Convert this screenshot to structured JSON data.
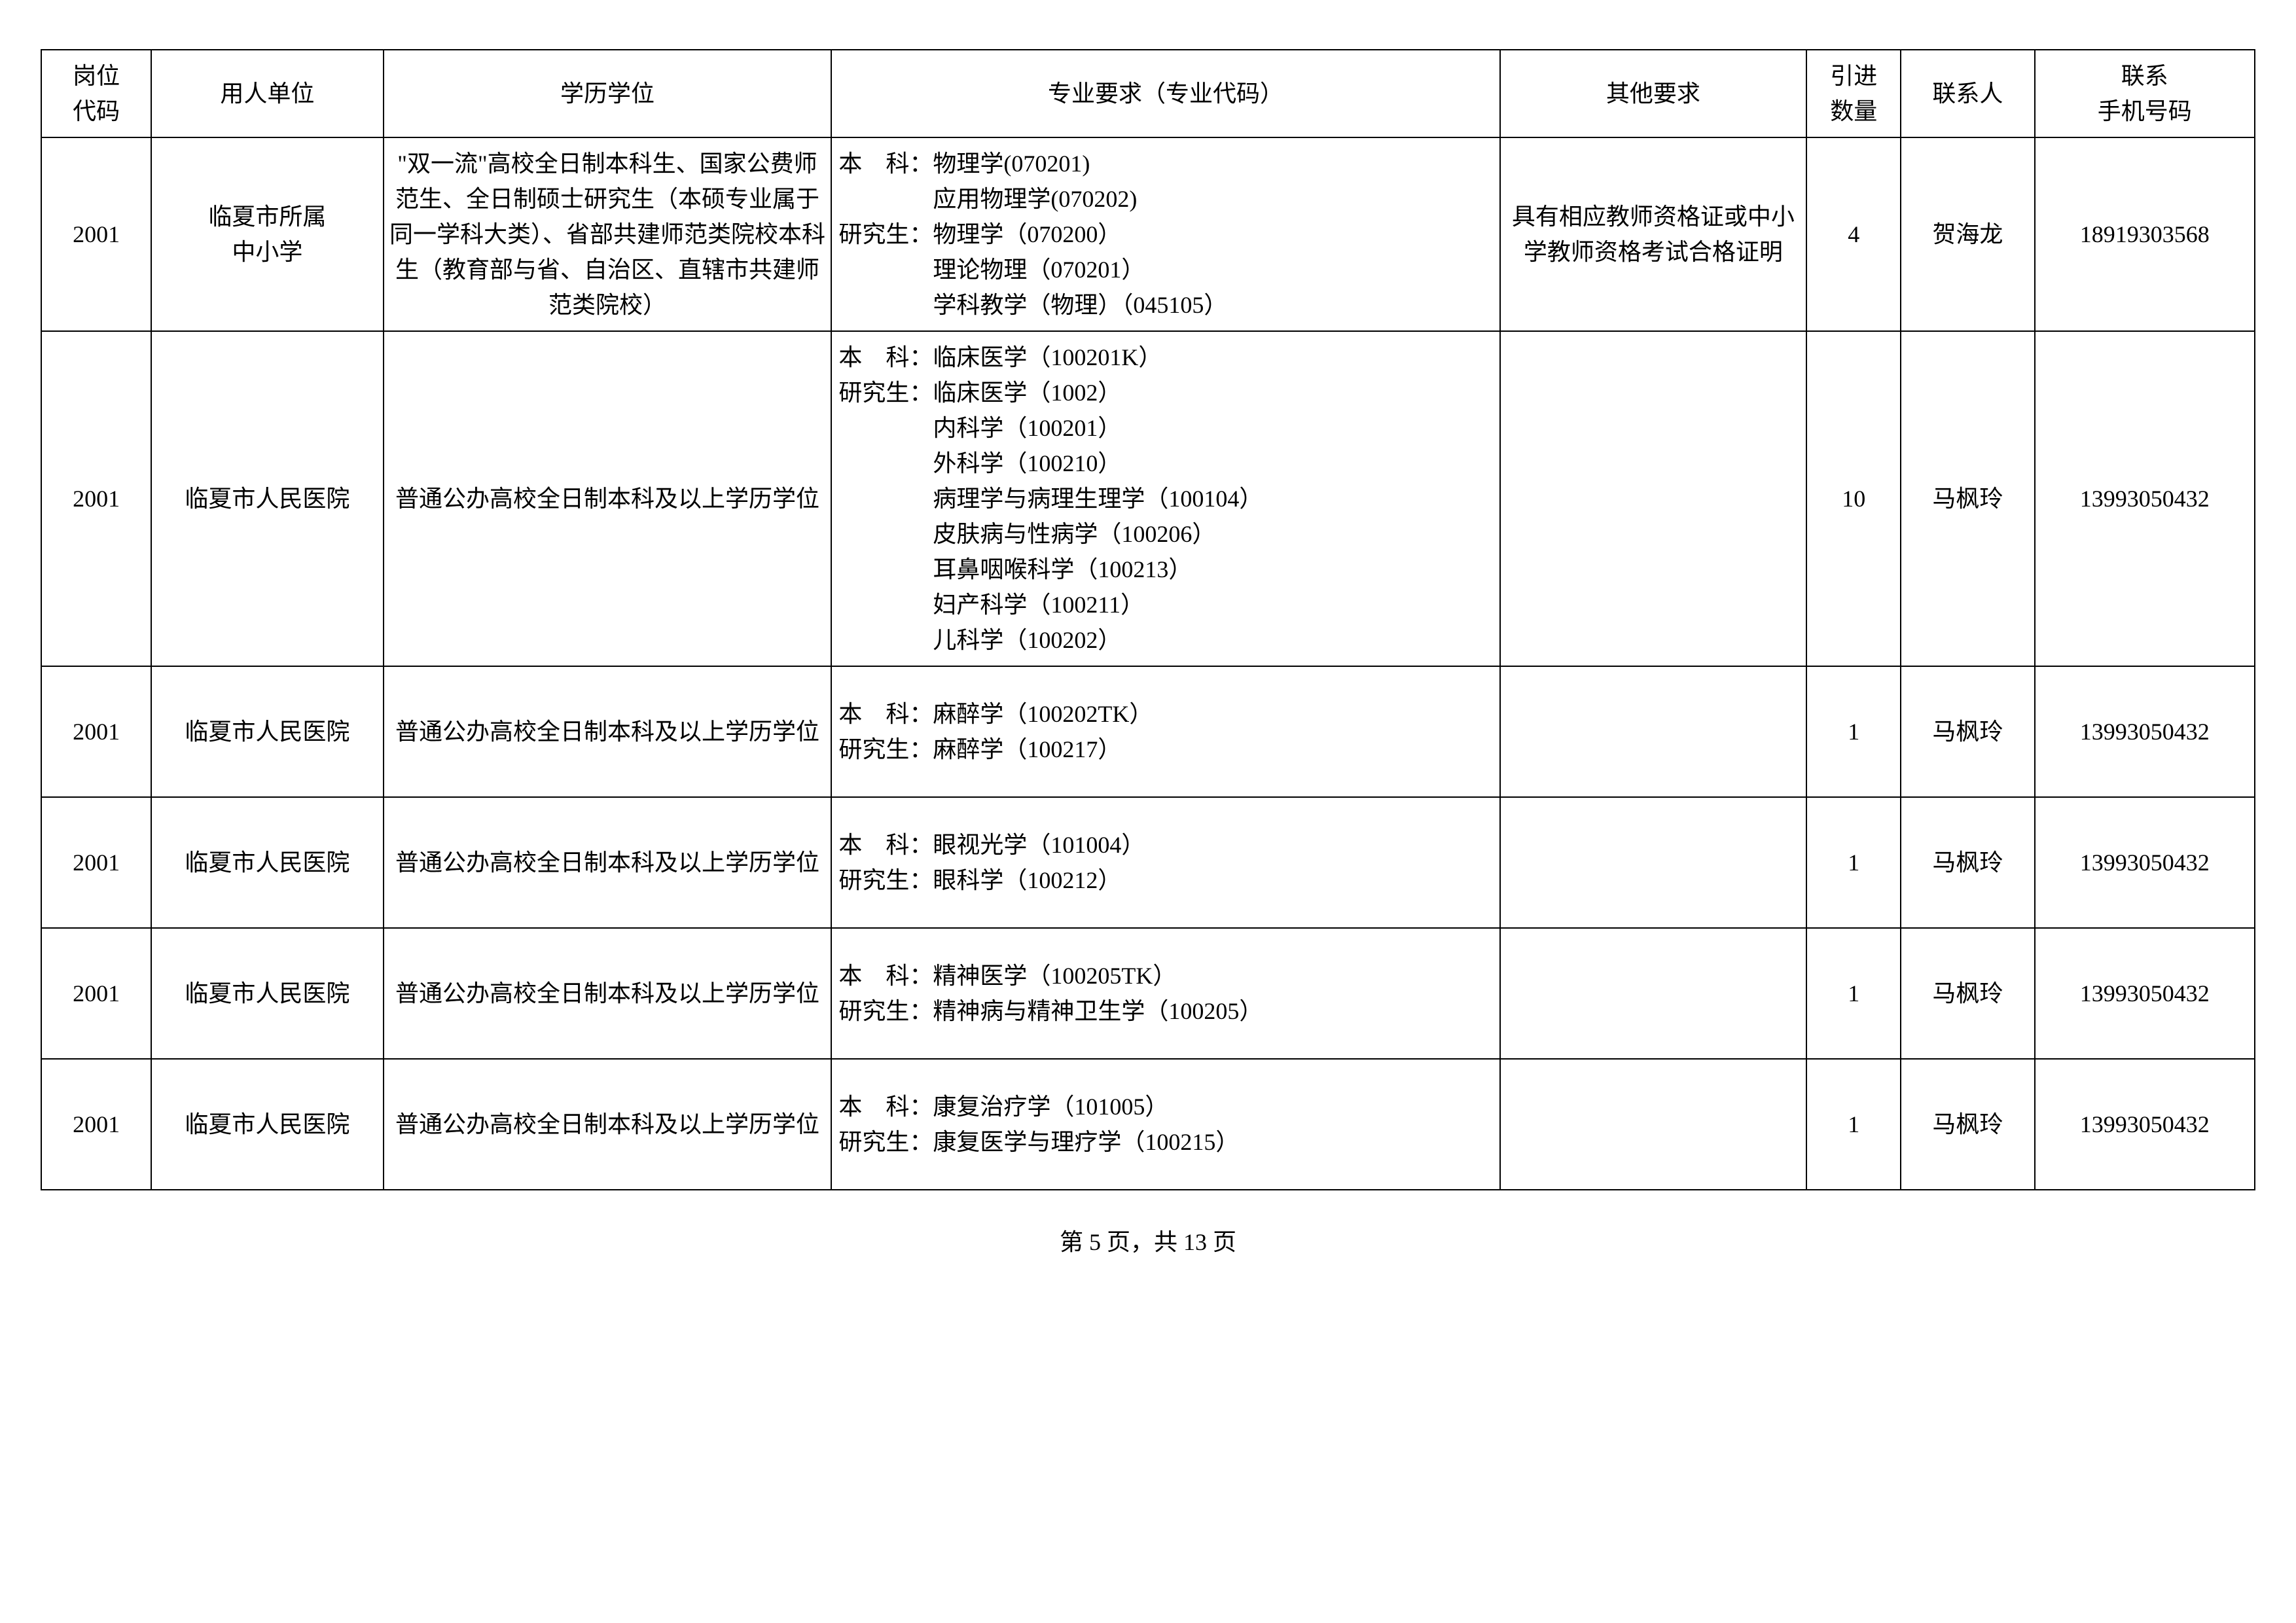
{
  "headers": {
    "code": "岗位\n代码",
    "unit": "用人单位",
    "edu": "学历学位",
    "major": "专业要求（专业代码）",
    "other": "其他要求",
    "count": "引进\n数量",
    "contact": "联系人",
    "phone": "联系\n手机号码"
  },
  "rows": [
    {
      "code": "2001",
      "unit": "临夏市所属\n中小学",
      "edu": "\"双一流\"高校全日制本科生、国家公费师范生、全日制硕士研究生（本硕专业属于同一学科大类）、省部共建师范类院校本科生（教育部与省、自治区、直辖市共建师范类院校）",
      "major_ben": "物理学(070201)\n应用物理学(070202)",
      "major_yan": "物理学（070200）\n理论物理（070201）\n学科教学（物理）（045105）",
      "other": "具有相应教师资格证或中小学教师资格考试合格证明",
      "count": "4",
      "contact": "贺海龙",
      "phone": "18919303568"
    },
    {
      "code": "2001",
      "unit": "临夏市人民医院",
      "edu": "普通公办高校全日制本科及以上学历学位",
      "major_ben": "临床医学（100201K）",
      "major_yan": "临床医学（1002）\n内科学（100201）\n外科学（100210）\n病理学与病理生理学（100104）\n皮肤病与性病学（100206）\n耳鼻咽喉科学（100213）\n妇产科学（100211）\n儿科学（100202）",
      "other": "",
      "count": "10",
      "contact": "马枫玲",
      "phone": "13993050432"
    },
    {
      "code": "2001",
      "unit": "临夏市人民医院",
      "edu": "普通公办高校全日制本科及以上学历学位",
      "major_ben": "麻醉学（100202TK）",
      "major_yan": "麻醉学（100217）",
      "other": "",
      "count": "1",
      "contact": "马枫玲",
      "phone": "13993050432"
    },
    {
      "code": "2001",
      "unit": "临夏市人民医院",
      "edu": "普通公办高校全日制本科及以上学历学位",
      "major_ben": "眼视光学（101004）",
      "major_yan": "眼科学（100212）",
      "other": "",
      "count": "1",
      "contact": "马枫玲",
      "phone": "13993050432"
    },
    {
      "code": "2001",
      "unit": "临夏市人民医院",
      "edu": "普通公办高校全日制本科及以上学历学位",
      "major_ben": "精神医学（100205TK）",
      "major_yan": "精神病与精神卫生学（100205）",
      "other": "",
      "count": "1",
      "contact": "马枫玲",
      "phone": "13993050432"
    },
    {
      "code": "2001",
      "unit": "临夏市人民医院",
      "edu": "普通公办高校全日制本科及以上学历学位",
      "major_ben": "康复治疗学（101005）",
      "major_yan": "康复医学与理疗学（100215）",
      "other": "",
      "count": "1",
      "contact": "马枫玲",
      "phone": "13993050432"
    }
  ],
  "footer": "第 5 页，共 13 页",
  "labels": {
    "ben": "本　科：",
    "yan": "研究生："
  }
}
